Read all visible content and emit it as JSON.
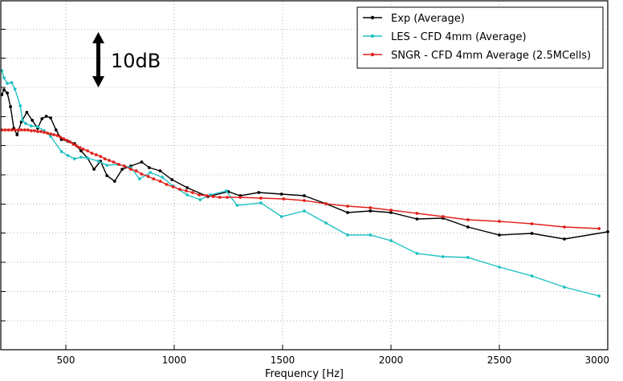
{
  "chart_data": {
    "type": "line",
    "title": "",
    "xlabel": "Frequency [Hz]",
    "ylabel": "",
    "xlim": [
      200,
      3000
    ],
    "xticks": [
      500,
      1000,
      1500,
      2000,
      2500,
      3000
    ],
    "grid": true,
    "legend_position": "top-right",
    "scale_annotation": "10dB",
    "series": [
      {
        "name": "Exp (Average)",
        "color": "#000000",
        "points": [
          [
            205,
            118
          ],
          [
            215,
            112
          ],
          [
            230,
            116
          ],
          [
            245,
            133
          ],
          [
            260,
            160
          ],
          [
            275,
            168
          ],
          [
            295,
            152
          ],
          [
            320,
            140
          ],
          [
            345,
            150
          ],
          [
            370,
            160
          ],
          [
            390,
            148
          ],
          [
            410,
            145
          ],
          [
            430,
            147
          ],
          [
            455,
            162
          ],
          [
            480,
            174
          ],
          [
            510,
            176
          ],
          [
            540,
            179
          ],
          [
            570,
            188
          ],
          [
            600,
            197
          ],
          [
            630,
            211
          ],
          [
            660,
            201
          ],
          [
            690,
            219
          ],
          [
            725,
            226
          ],
          [
            760,
            211
          ],
          [
            800,
            207
          ],
          [
            850,
            202
          ],
          [
            885,
            209
          ],
          [
            935,
            213
          ],
          [
            990,
            224
          ],
          [
            1060,
            234
          ],
          [
            1155,
            245
          ],
          [
            1250,
            239
          ],
          [
            1305,
            244
          ],
          [
            1390,
            240
          ],
          [
            1495,
            242
          ],
          [
            1600,
            244
          ],
          [
            1700,
            254
          ],
          [
            1800,
            265
          ],
          [
            1905,
            263
          ],
          [
            2000,
            265
          ],
          [
            2120,
            273
          ],
          [
            2240,
            272
          ],
          [
            2355,
            283
          ],
          [
            2500,
            293
          ],
          [
            2650,
            291
          ],
          [
            2800,
            298
          ],
          [
            3000,
            289
          ]
        ]
      },
      {
        "name": "LES - CFD 4mm (Average)",
        "color": "#22c1c3",
        "points": [
          [
            205,
            88
          ],
          [
            215,
            97
          ],
          [
            230,
            104
          ],
          [
            250,
            103
          ],
          [
            265,
            111
          ],
          [
            290,
            132
          ],
          [
            300,
            150
          ],
          [
            315,
            154
          ],
          [
            340,
            157
          ],
          [
            370,
            158
          ],
          [
            400,
            163
          ],
          [
            430,
            170
          ],
          [
            480,
            189
          ],
          [
            510,
            194
          ],
          [
            540,
            198
          ],
          [
            570,
            196
          ],
          [
            600,
            197
          ],
          [
            650,
            201
          ],
          [
            690,
            206
          ],
          [
            740,
            205
          ],
          [
            800,
            209
          ],
          [
            840,
            223
          ],
          [
            890,
            215
          ],
          [
            945,
            221
          ],
          [
            995,
            232
          ],
          [
            1060,
            243
          ],
          [
            1120,
            249
          ],
          [
            1165,
            243
          ],
          [
            1240,
            238
          ],
          [
            1290,
            256
          ],
          [
            1400,
            253
          ],
          [
            1495,
            270
          ],
          [
            1600,
            263
          ],
          [
            1700,
            278
          ],
          [
            1800,
            293
          ],
          [
            1905,
            293
          ],
          [
            2000,
            300
          ],
          [
            2120,
            316
          ],
          [
            2240,
            320
          ],
          [
            2355,
            321
          ],
          [
            2500,
            333
          ],
          [
            2650,
            344
          ],
          [
            2800,
            358
          ],
          [
            2960,
            369
          ]
        ]
      },
      {
        "name": "SNGR - CFD 4mm Average (2.5MCells)",
        "color": "#e0201b",
        "points": [
          [
            205,
            162
          ],
          [
            220,
            162
          ],
          [
            235,
            162
          ],
          [
            250,
            162
          ],
          [
            265,
            162
          ],
          [
            280,
            162
          ],
          [
            295,
            162
          ],
          [
            310,
            162
          ],
          [
            325,
            162
          ],
          [
            340,
            163
          ],
          [
            355,
            163
          ],
          [
            370,
            164
          ],
          [
            385,
            164
          ],
          [
            400,
            165
          ],
          [
            415,
            166
          ],
          [
            430,
            167
          ],
          [
            445,
            168
          ],
          [
            460,
            169
          ],
          [
            475,
            171
          ],
          [
            490,
            173
          ],
          [
            505,
            175
          ],
          [
            520,
            177
          ],
          [
            535,
            180
          ],
          [
            550,
            182
          ],
          [
            565,
            184
          ],
          [
            580,
            186
          ],
          [
            600,
            188
          ],
          [
            620,
            191
          ],
          [
            640,
            193
          ],
          [
            660,
            195
          ],
          [
            680,
            198
          ],
          [
            700,
            200
          ],
          [
            720,
            202
          ],
          [
            745,
            205
          ],
          [
            770,
            207
          ],
          [
            800,
            211
          ],
          [
            825,
            213
          ],
          [
            850,
            217
          ],
          [
            880,
            220
          ],
          [
            905,
            223
          ],
          [
            935,
            226
          ],
          [
            965,
            230
          ],
          [
            995,
            233
          ],
          [
            1025,
            236
          ],
          [
            1055,
            238
          ],
          [
            1085,
            240
          ],
          [
            1115,
            243
          ],
          [
            1150,
            244
          ],
          [
            1180,
            245
          ],
          [
            1210,
            246
          ],
          [
            1245,
            246
          ],
          [
            1305,
            246
          ],
          [
            1400,
            247
          ],
          [
            1505,
            248
          ],
          [
            1600,
            250
          ],
          [
            1700,
            254
          ],
          [
            1800,
            257
          ],
          [
            1905,
            259
          ],
          [
            2000,
            262
          ],
          [
            2120,
            266
          ],
          [
            2240,
            270
          ],
          [
            2355,
            274
          ],
          [
            2500,
            276
          ],
          [
            2650,
            279
          ],
          [
            2800,
            283
          ],
          [
            2960,
            285
          ]
        ]
      }
    ]
  }
}
